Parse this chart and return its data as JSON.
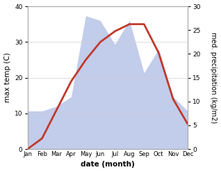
{
  "months": [
    "Jan",
    "Feb",
    "Mar",
    "Apr",
    "May",
    "Jun",
    "Jul",
    "Aug",
    "Sep",
    "Oct",
    "Nov",
    "Dec"
  ],
  "temperature": [
    0,
    3,
    11,
    19,
    25,
    30,
    33,
    35,
    35,
    27,
    14,
    7
  ],
  "precipitation": [
    8,
    8,
    9,
    11,
    28,
    27,
    22,
    27,
    16,
    21,
    11,
    8
  ],
  "temp_color": "#c0392b",
  "precip_fill_color": "#b8c4e8",
  "temp_ylim": [
    0,
    40
  ],
  "precip_ylim": [
    0,
    30
  ],
  "temp_yticks": [
    0,
    10,
    20,
    30,
    40
  ],
  "precip_yticks": [
    0,
    5,
    10,
    15,
    20,
    25,
    30
  ],
  "xlabel": "date (month)",
  "ylabel_left": "max temp (C)",
  "ylabel_right": "med. precipitation (kg/m2)",
  "bg_color": "#ffffff",
  "grid_color": "#d0d0d0",
  "label_fontsize": 7.5,
  "tick_fontsize": 6.5,
  "linewidth": 2.0
}
